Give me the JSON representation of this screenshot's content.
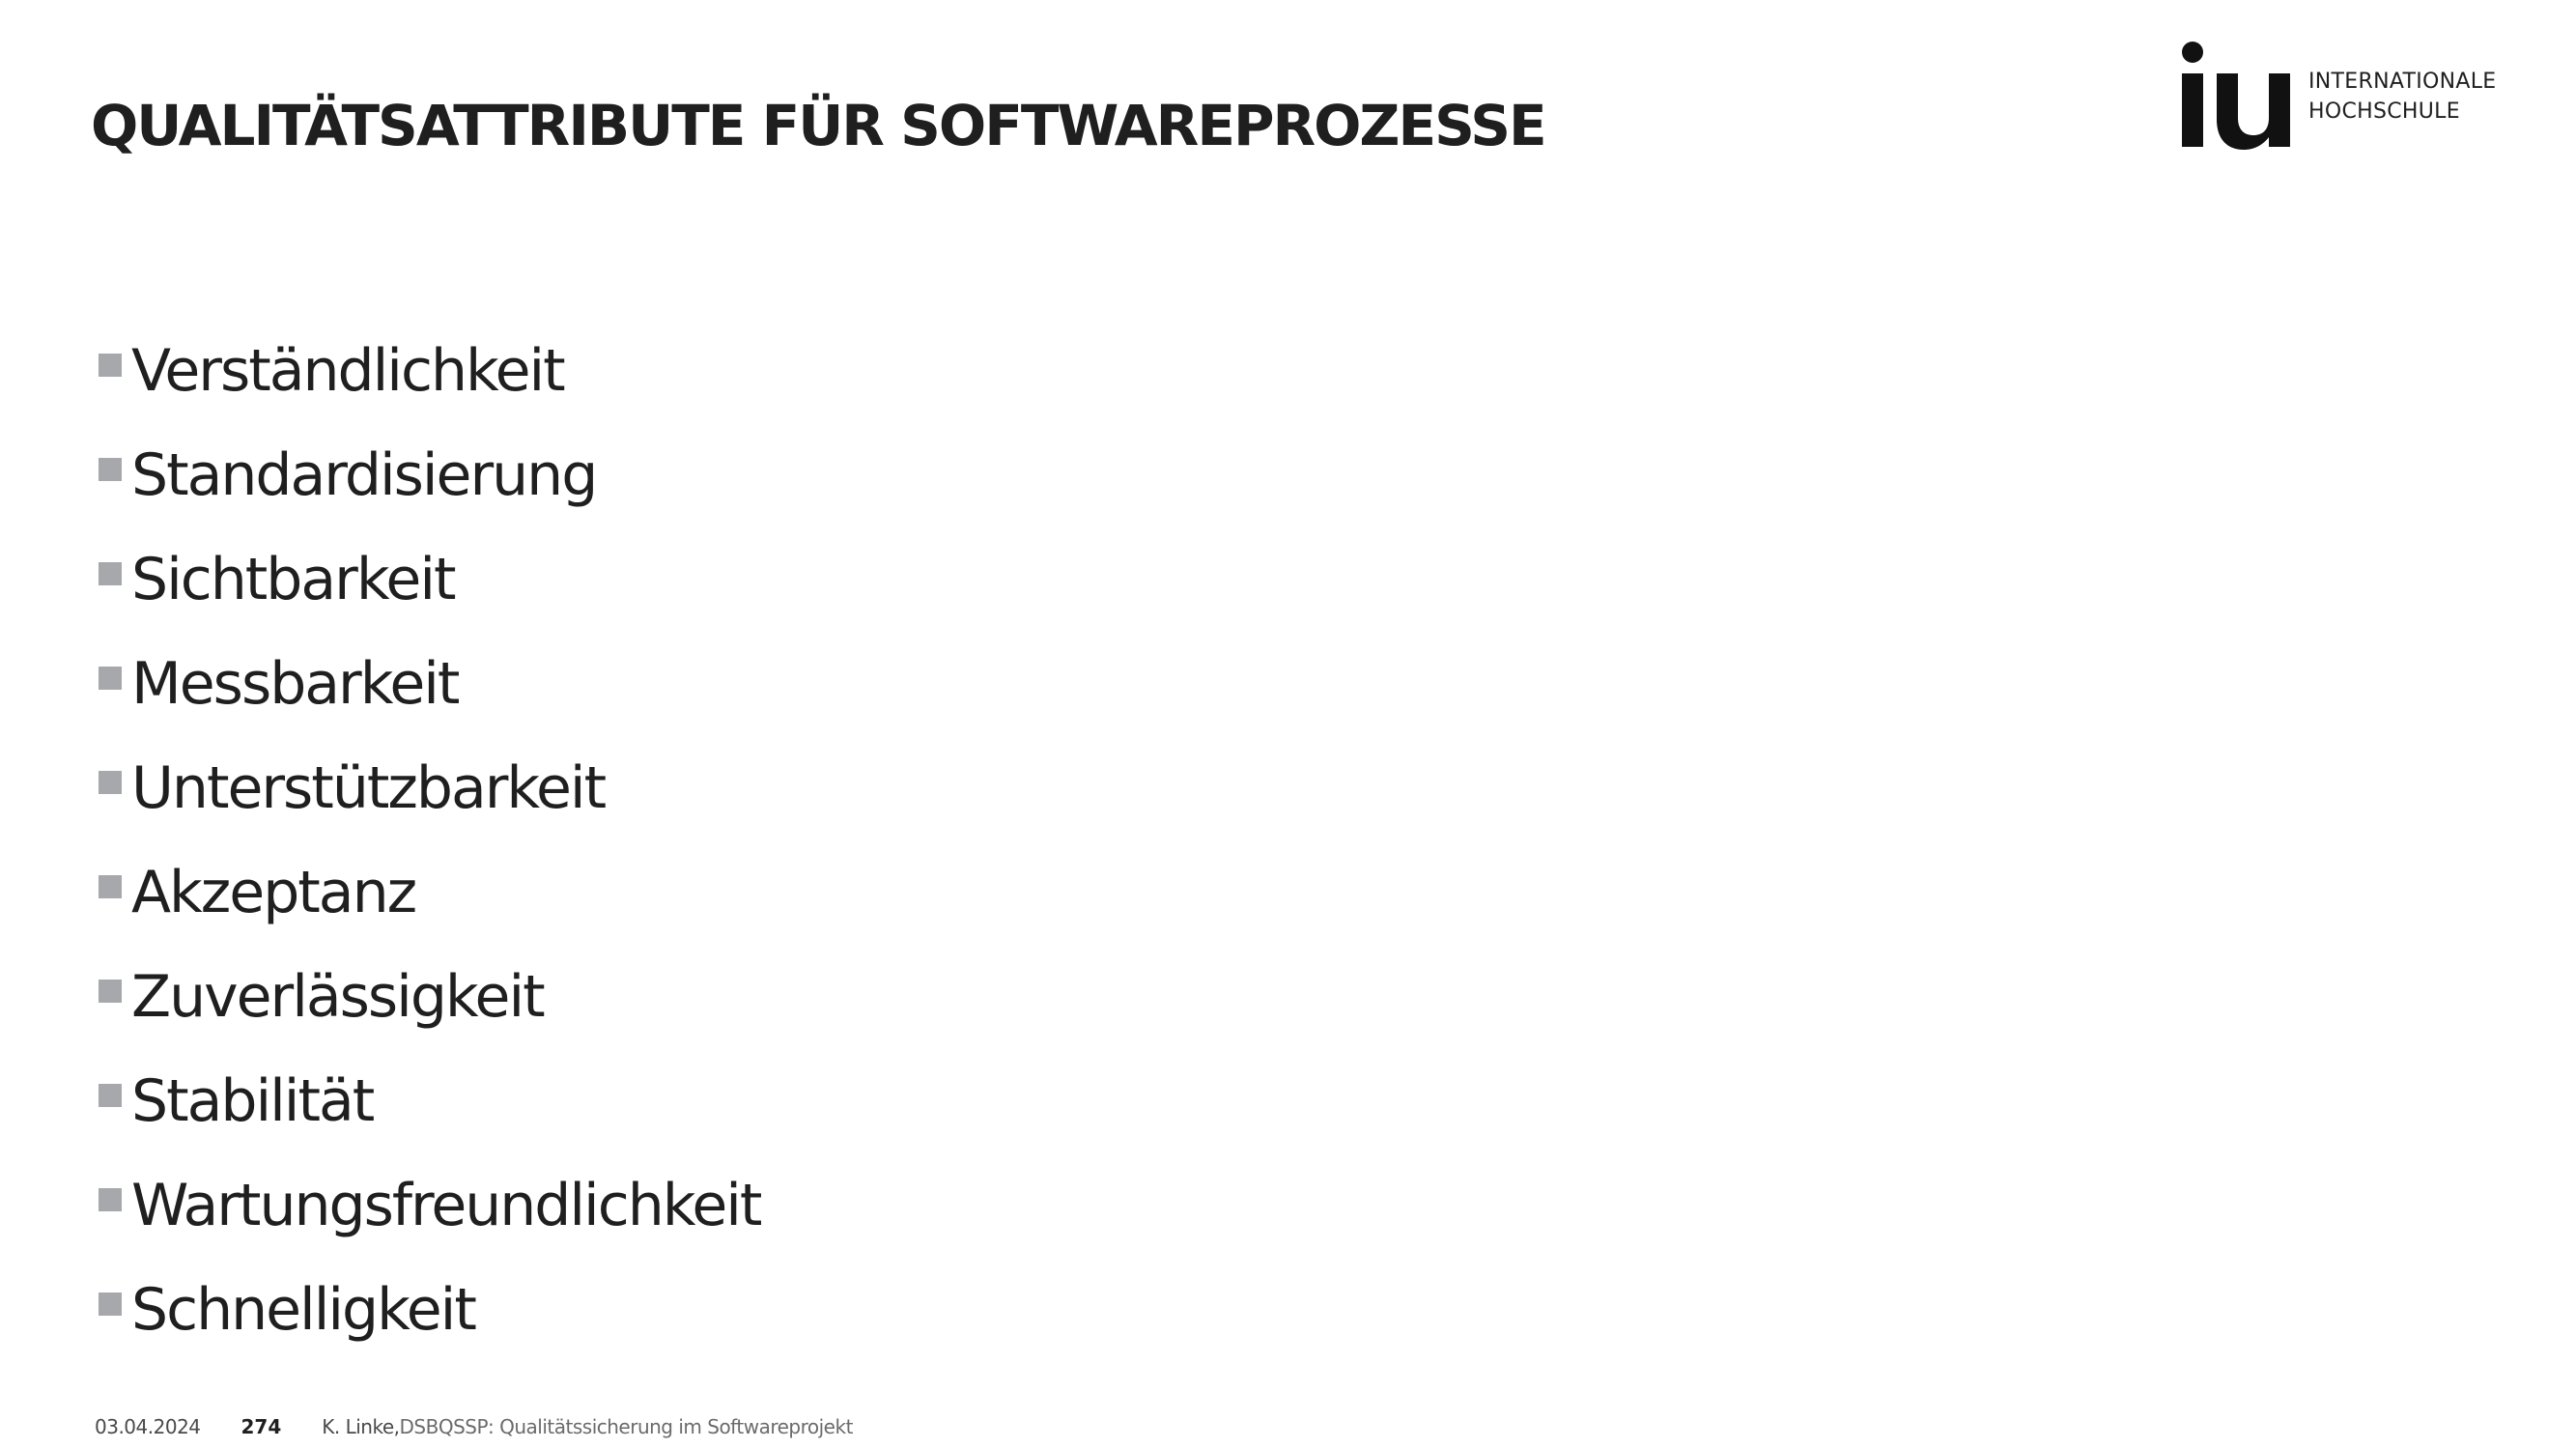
{
  "slide": {
    "title": "QUALITÄTSATTRIBUTE FÜR SOFTWAREPROZESSE"
  },
  "logo": {
    "mark": "iu",
    "line1": "INTERNATIONALE",
    "line2": "HOCHSCHULE"
  },
  "bullets": [
    "Verständlichkeit",
    "Standardisierung",
    "Sichtbarkeit",
    "Messbarkeit",
    "Unterstützbarkeit",
    "Akzeptanz",
    "Zuverlässigkeit",
    "Stabilität",
    "Wartungsfreundlichkeit",
    "Schnelligkeit"
  ],
  "footer": {
    "date": "03.04.2024",
    "page_number": "274",
    "author": "K. Linke, ",
    "course": "DSBQSSP: Qualitätssicherung im Softwareprojekt"
  },
  "colors": {
    "text": "#1f1f1f",
    "bullet_square": "#a6a8ab",
    "background": "#ffffff"
  }
}
